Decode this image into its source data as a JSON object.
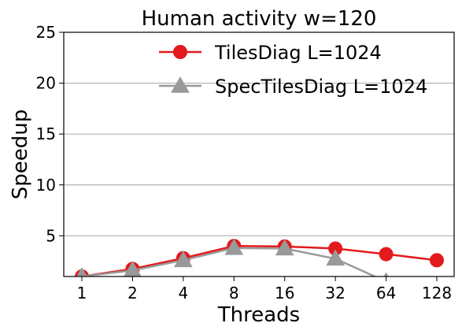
{
  "chart_data": {
    "type": "line",
    "title": "Human activity w=120",
    "xlabel": "Threads",
    "ylabel": "Speedup",
    "categories": [
      "1",
      "2",
      "4",
      "8",
      "16",
      "32",
      "64",
      "128"
    ],
    "ylim": [
      1,
      25
    ],
    "yticks": [
      5,
      10,
      15,
      20,
      25
    ],
    "grid": "horizontal",
    "legend_position": "top-right",
    "series": [
      {
        "name": "TilesDiag L=1024",
        "values": [
          1.0,
          1.75,
          2.8,
          4.0,
          3.95,
          3.75,
          3.2,
          2.6
        ],
        "color": "#e31a1c",
        "marker": "circle"
      },
      {
        "name": "SpecTilesDiag L=1024",
        "values": [
          1.0,
          1.6,
          2.6,
          3.8,
          3.75,
          2.75,
          0.5,
          null
        ],
        "color": "#999999",
        "marker": "triangle"
      }
    ]
  }
}
